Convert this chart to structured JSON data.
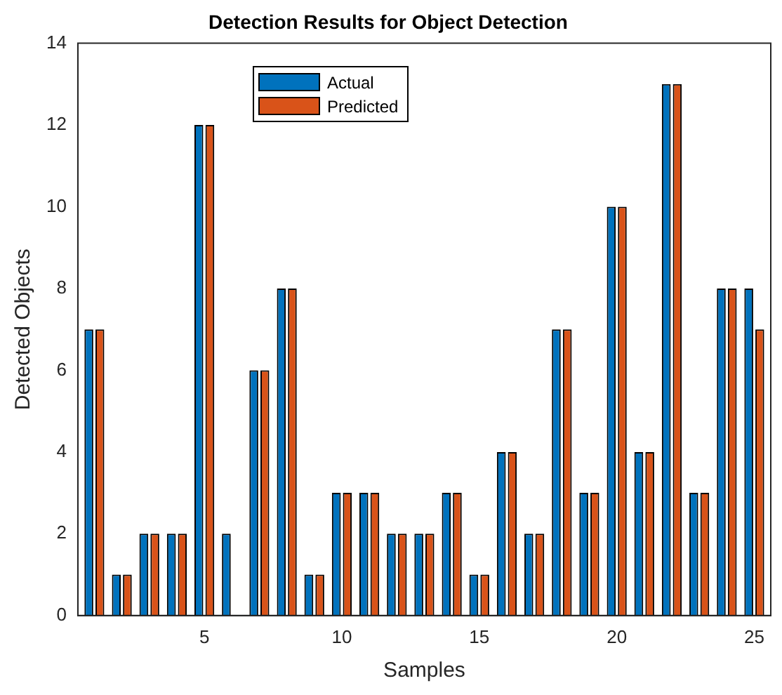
{
  "chart_data": {
    "type": "bar",
    "title": "Detection Results for Object Detection",
    "xlabel": "Samples",
    "ylabel": "Detected Objects",
    "x": [
      1,
      2,
      3,
      4,
      5,
      6,
      7,
      8,
      9,
      10,
      11,
      12,
      13,
      14,
      15,
      16,
      17,
      18,
      19,
      20,
      21,
      22,
      23,
      24,
      25
    ],
    "series": [
      {
        "name": "Actual",
        "color": "#0072bd",
        "values": [
          7,
          1,
          2,
          2,
          12,
          2,
          6,
          8,
          1,
          3,
          3,
          2,
          2,
          3,
          1,
          4,
          2,
          7,
          3,
          10,
          4,
          13,
          3,
          8,
          8
        ]
      },
      {
        "name": "Predicted",
        "color": "#d95319",
        "values": [
          7,
          1,
          2,
          2,
          12,
          0,
          6,
          8,
          1,
          3,
          3,
          2,
          2,
          3,
          1,
          4,
          2,
          7,
          3,
          10,
          4,
          13,
          3,
          8,
          7
        ]
      }
    ],
    "xlim": [
      0.4,
      25.6
    ],
    "xticks": [
      5,
      10,
      15,
      20,
      25
    ],
    "ylim": [
      0,
      14
    ],
    "yticks": [
      0,
      2,
      4,
      6,
      8,
      10,
      12,
      14
    ],
    "grid": false,
    "legend": "top left"
  }
}
